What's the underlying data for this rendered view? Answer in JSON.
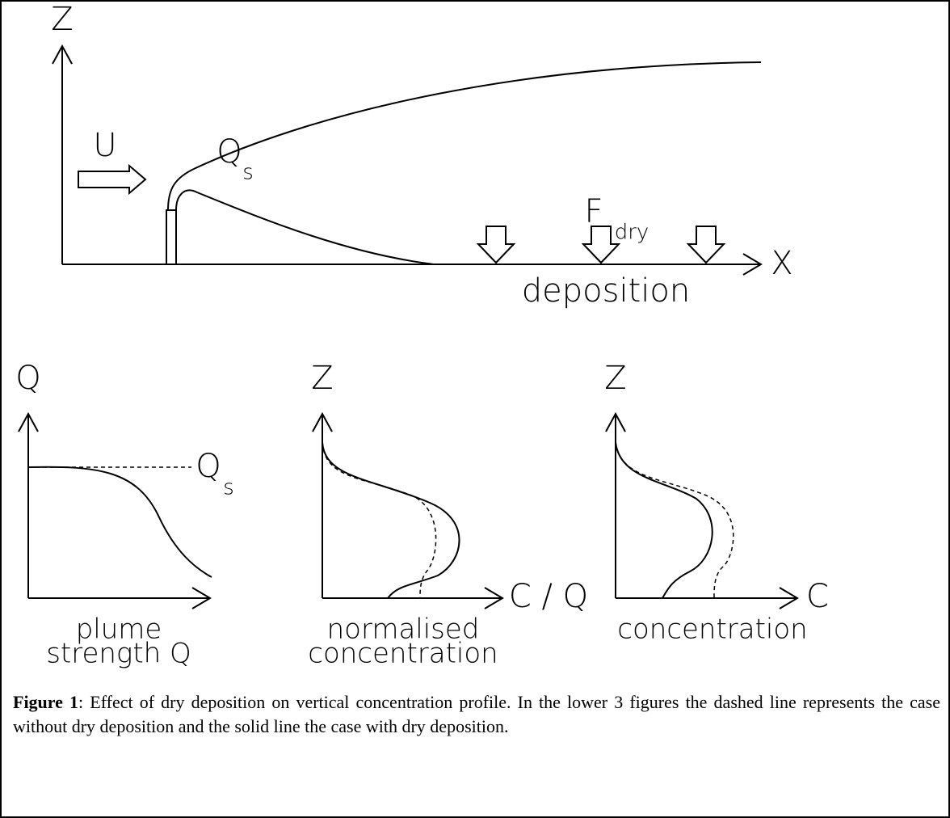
{
  "top": {
    "z_axis": "Z",
    "x_axis": "X",
    "wind": "U",
    "source": {
      "main": "Q",
      "sub": "s"
    },
    "flux": {
      "main": "F",
      "sub": "dry"
    },
    "label": "deposition"
  },
  "panels": [
    {
      "y_axis": "Q",
      "ref": {
        "main": "Q",
        "sub": "s"
      },
      "label": [
        "plume",
        "strength Q"
      ]
    },
    {
      "y_axis": "Z",
      "x_axis": "C / Q",
      "label": [
        "normalised",
        "concentration"
      ]
    },
    {
      "y_axis": "Z",
      "x_axis": "C",
      "label": [
        "concentration"
      ]
    }
  ],
  "caption": {
    "label": "Figure 1",
    "text": ": Effect of dry deposition on vertical concentration profile.  In the lower 3 figures the dashed line represents the case without dry deposition and the solid line the case with dry deposition."
  }
}
